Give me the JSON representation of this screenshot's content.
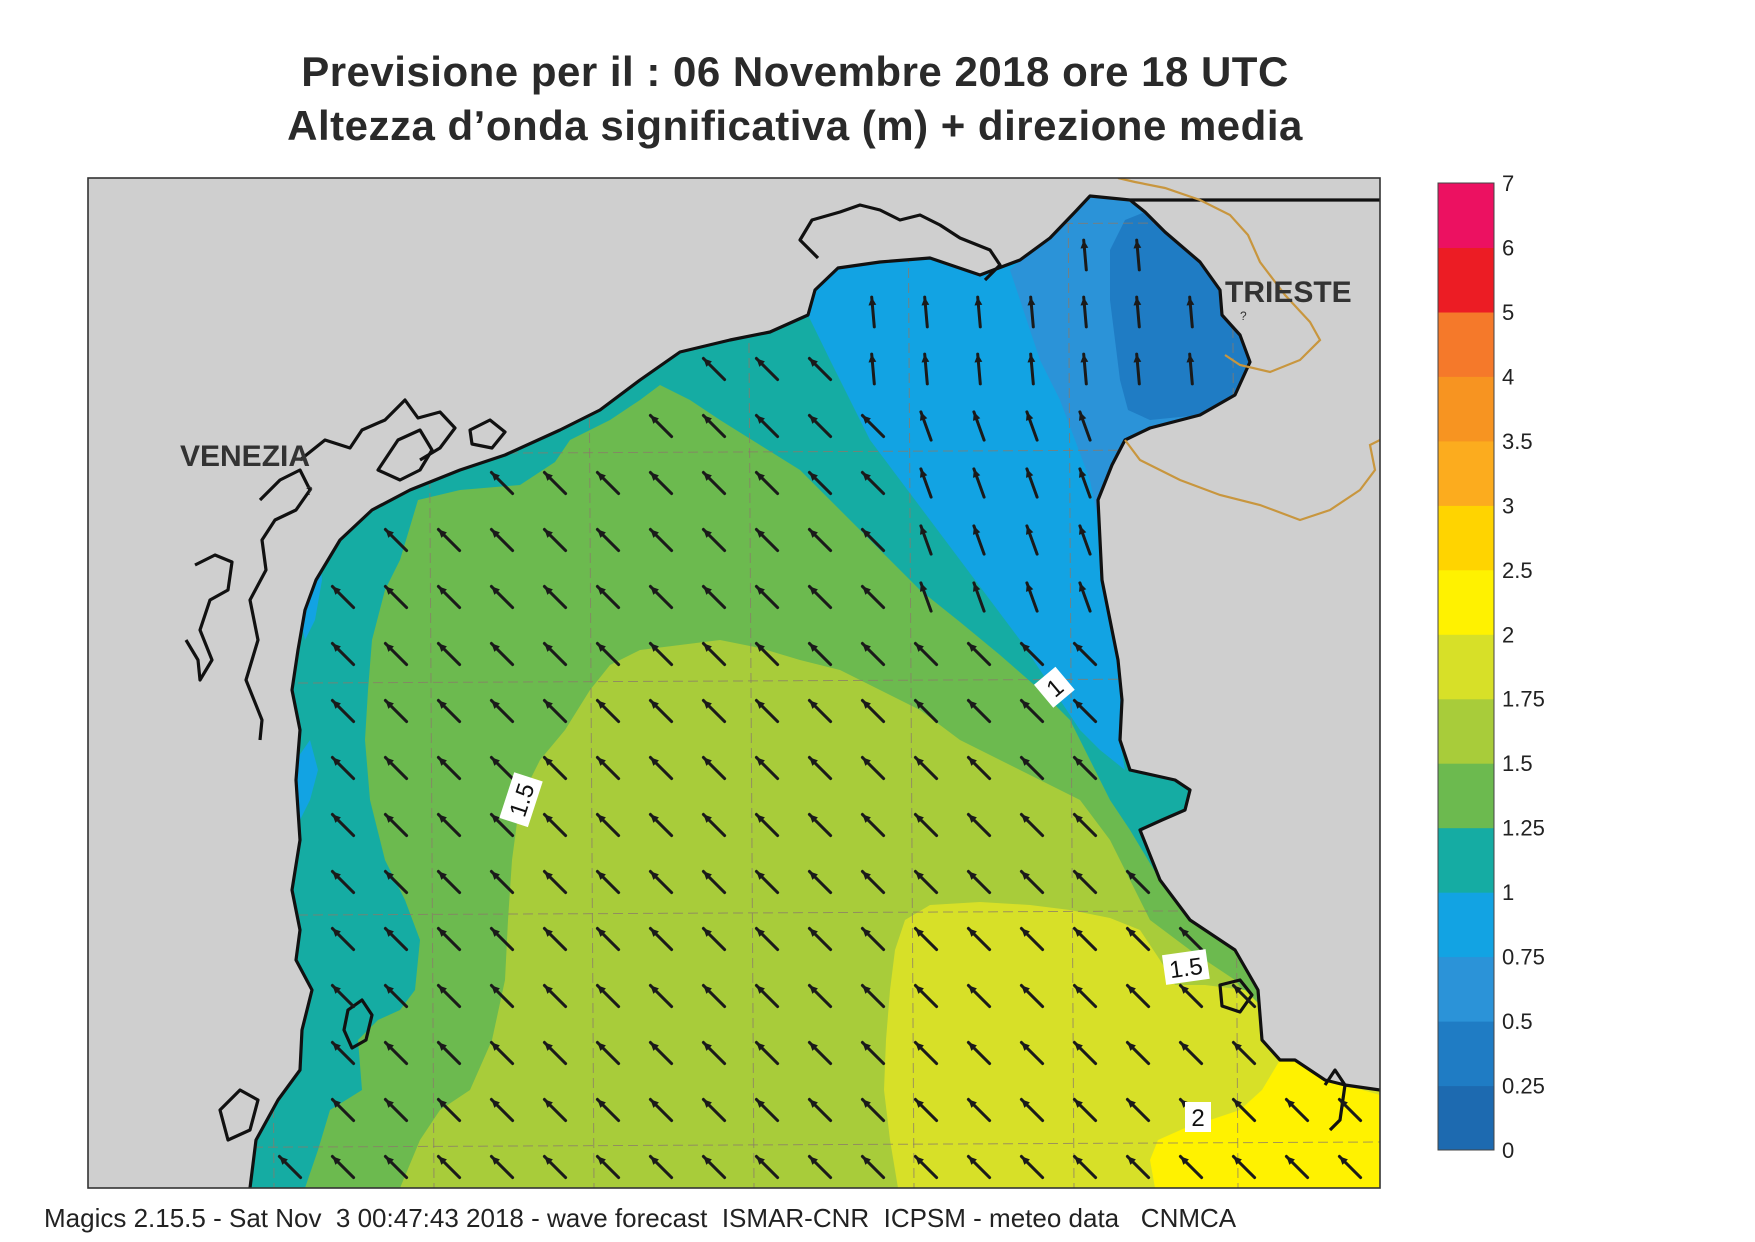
{
  "title": {
    "line1": "Previsione per il  :  06 Novembre  2018   ore 18 UTC",
    "line2": "Altezza d’onda significativa (m) + direzione media"
  },
  "map": {
    "places": {
      "venezia": "VENEZIA",
      "trieste": "TRIESTE",
      "mark": "?"
    },
    "contour_labels": [
      "1",
      "1.5",
      "1.5",
      "2"
    ],
    "colors": {
      "land": "#cfcfcf",
      "coast": "#111111",
      "border": "#c8963e",
      "grid": "#8a7a6a",
      "arrow": "#1a1a1a"
    }
  },
  "legend": {
    "bands": [
      {
        "from": "0",
        "to": "0.25",
        "color": "#1d6ab0"
      },
      {
        "from": "0.25",
        "to": "0.5",
        "color": "#1f7cc4"
      },
      {
        "from": "0.5",
        "to": "0.75",
        "color": "#2b93d8"
      },
      {
        "from": "0.75",
        "to": "1",
        "color": "#12a3e3"
      },
      {
        "from": "1",
        "to": "1.25",
        "color": "#15aca3"
      },
      {
        "from": "1.25",
        "to": "1.5",
        "color": "#6cba4f"
      },
      {
        "from": "1.5",
        "to": "1.75",
        "color": "#a8cc3a"
      },
      {
        "from": "1.75",
        "to": "2",
        "color": "#d7e028"
      },
      {
        "from": "2",
        "to": "2.5",
        "color": "#fff200"
      },
      {
        "from": "2.5",
        "to": "3",
        "color": "#ffd400"
      },
      {
        "from": "3",
        "to": "3.5",
        "color": "#fcac1e"
      },
      {
        "from": "3.5",
        "to": "4",
        "color": "#f79421"
      },
      {
        "from": "4",
        "to": "5",
        "color": "#f5792a"
      },
      {
        "from": "5",
        "to": "6",
        "color": "#ec1c24"
      },
      {
        "from": "6",
        "to": "7",
        "color": "#ec1161"
      }
    ],
    "ticks": [
      "0",
      "0.25",
      "0.5",
      "0.75",
      "1",
      "1.25",
      "1.5",
      "1.75",
      "2",
      "2.5",
      "3",
      "3.5",
      "4",
      "5",
      "6",
      "7"
    ]
  },
  "footer": "Magics 2.15.5 - Sat Nov  3 00:47:43 2018 - wave forecast  ISMAR-CNR  ICPSM - meteo data   CNMCA"
}
